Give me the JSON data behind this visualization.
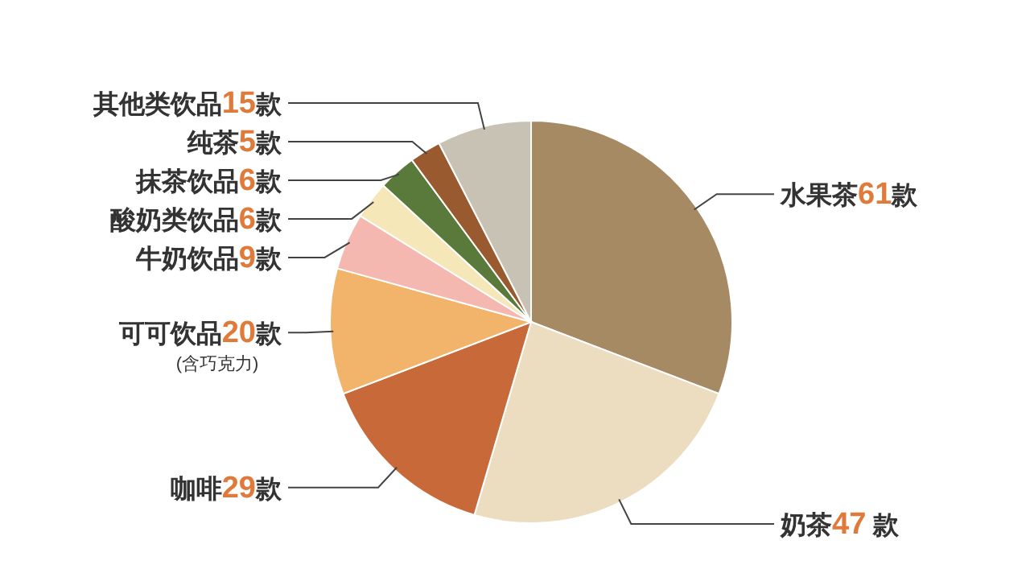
{
  "chart_data": {
    "type": "pie",
    "categories": [
      "水果茶",
      "奶茶",
      "咖啡",
      "可可饮品",
      "牛奶饮品",
      "酸奶类饮品",
      "抹茶饮品",
      "纯茶",
      "其他类饮品"
    ],
    "values": [
      61,
      47,
      29,
      20,
      9,
      6,
      6,
      5,
      15
    ],
    "value_labels": [
      "**61**款",
      "**47** 款",
      "**29**款",
      "**20**款",
      "**9**款",
      "**6**款",
      "**6**款",
      "**5**款",
      "**15**款"
    ],
    "colors": [
      "#a68a64",
      "#ecdcc0",
      "#c8693a",
      "#f2b36a",
      "#f4b8b0",
      "#f6e7b8",
      "#5a7a3c",
      "#9a5a30",
      "#c8c2b4"
    ],
    "annotations": [
      {
        "text": "(含巧克力)",
        "x": "可可饮品"
      }
    ]
  }
}
